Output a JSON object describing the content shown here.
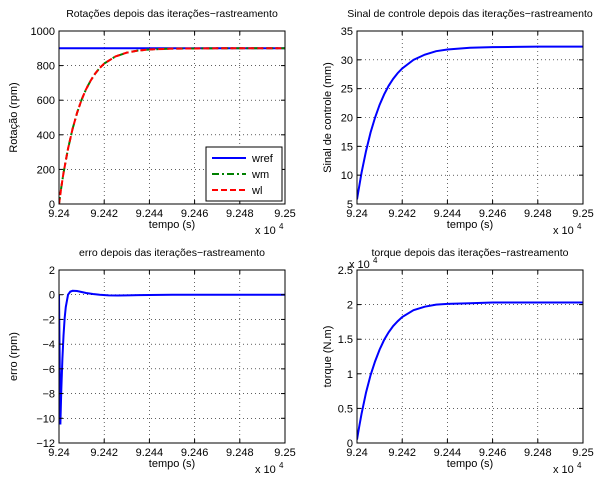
{
  "chart_data": [
    {
      "type": "line",
      "title": "Rotações depois das iterações−rastreamento",
      "xlabel": "tempo (s)",
      "ylabel": "Rotação (rpm)",
      "xlim": [
        92400,
        92500
      ],
      "ylim": [
        0,
        1000
      ],
      "xticks": [
        92400,
        92420,
        92440,
        92460,
        92480,
        92500
      ],
      "xtick_labels": [
        "9.24",
        "9.242",
        "9.244",
        "9.246",
        "9.248",
        "9.25"
      ],
      "yticks": [
        0,
        200,
        400,
        600,
        800,
        1000
      ],
      "ytick_labels": [
        "0",
        "200",
        "400",
        "600",
        "800",
        "1000"
      ],
      "x_multiplier": "x 10",
      "x_multiplier_exp": "4",
      "grid": "dotted",
      "legend_position": "bottom-right",
      "series": [
        {
          "name": "wref",
          "color": "#0000ff",
          "dash": "solid",
          "x": [
            92400,
            92500
          ],
          "y": [
            900,
            900
          ]
        },
        {
          "name": "wm",
          "color": "#008000",
          "dash": "dashdot",
          "x": [
            92400,
            92401,
            92402,
            92404,
            92406,
            92408,
            92410,
            92412,
            92414,
            92416,
            92418,
            92420,
            92425,
            92430,
            92435,
            92440,
            92450,
            92460,
            92470,
            92480,
            92490,
            92500
          ],
          "y": [
            0,
            95,
            180,
            320,
            434,
            527,
            603,
            664,
            713,
            754,
            786,
            812,
            853,
            875,
            887,
            893,
            898,
            899,
            900,
            900,
            900,
            900
          ]
        },
        {
          "name": "wl",
          "color": "#ff0000",
          "dash": "dashed",
          "x": [
            92400,
            92401,
            92402,
            92404,
            92406,
            92408,
            92410,
            92412,
            92414,
            92416,
            92418,
            92420,
            92425,
            92430,
            92435,
            92440,
            92450,
            92460,
            92470,
            92480,
            92490,
            92500
          ],
          "y": [
            0,
            95,
            180,
            320,
            434,
            527,
            603,
            664,
            713,
            754,
            786,
            812,
            853,
            875,
            887,
            893,
            898,
            899,
            900,
            900,
            900,
            900
          ]
        }
      ]
    },
    {
      "type": "line",
      "title": "Sinal de controle depois das iterações−rastreamento",
      "xlabel": "tempo (s)",
      "ylabel": "Sinal de controle (mm)",
      "xlim": [
        92400,
        92500
      ],
      "ylim": [
        5,
        35
      ],
      "xticks": [
        92400,
        92420,
        92440,
        92460,
        92480,
        92500
      ],
      "xtick_labels": [
        "9.24",
        "9.242",
        "9.244",
        "9.246",
        "9.248",
        "9.25"
      ],
      "yticks": [
        5,
        10,
        15,
        20,
        25,
        30,
        35
      ],
      "ytick_labels": [
        "5",
        "10",
        "15",
        "20",
        "25",
        "30",
        "35"
      ],
      "x_multiplier": "x 10",
      "x_multiplier_exp": "4",
      "grid": "dotted",
      "series": [
        {
          "color": "#0000ff",
          "dash": "solid",
          "x": [
            92400,
            92402,
            92404,
            92406,
            92408,
            92410,
            92412,
            92414,
            92416,
            92418,
            92420,
            92425,
            92430,
            92435,
            92440,
            92450,
            92460,
            92470,
            92480,
            92490,
            92500
          ],
          "y": [
            5.8,
            10.4,
            14.2,
            17.4,
            20.0,
            22.2,
            24.0,
            25.5,
            26.7,
            27.7,
            28.5,
            30.0,
            30.9,
            31.5,
            31.8,
            32.1,
            32.2,
            32.25,
            32.3,
            32.3,
            32.3
          ]
        }
      ]
    },
    {
      "type": "line",
      "title": "erro depois das iterações−rastreamento",
      "xlabel": "tempo (s)",
      "ylabel": "erro (rpm)",
      "xlim": [
        92400,
        92500
      ],
      "ylim": [
        -12,
        2
      ],
      "xticks": [
        92400,
        92420,
        92440,
        92460,
        92480,
        92500
      ],
      "xtick_labels": [
        "9.24",
        "9.242",
        "9.244",
        "9.246",
        "9.248",
        "9.25"
      ],
      "yticks": [
        -12,
        -10,
        -8,
        -6,
        -4,
        -2,
        0,
        2
      ],
      "ytick_labels": [
        "−12",
        "−10",
        "−8",
        "−6",
        "−4",
        "−2",
        "0",
        "2"
      ],
      "x_multiplier": "x 10",
      "x_multiplier_exp": "4",
      "grid": "dotted",
      "series": [
        {
          "color": "#0000ff",
          "dash": "solid",
          "x": [
            92400,
            92400.6,
            92401,
            92401.5,
            92402,
            92402.5,
            92403,
            92404,
            92405,
            92406,
            92408,
            92410,
            92412,
            92415,
            92418,
            92422,
            92426,
            92430,
            92435,
            92440,
            92450,
            92460,
            92480,
            92500
          ],
          "y": [
            0,
            -10.5,
            -7.8,
            -5.2,
            -3.3,
            -1.9,
            -1.0,
            0.0,
            0.25,
            0.32,
            0.3,
            0.22,
            0.14,
            0.06,
            0.0,
            -0.05,
            -0.06,
            -0.05,
            -0.03,
            -0.02,
            0,
            0,
            0,
            0
          ]
        }
      ]
    },
    {
      "type": "line",
      "title": "torque depois das iterações−rastreamento",
      "xlabel": "tempo (s)",
      "ylabel": "torque (N.m)",
      "xlim": [
        92400,
        92500
      ],
      "ylim": [
        0,
        2.5
      ],
      "xticks": [
        92400,
        92420,
        92440,
        92460,
        92480,
        92500
      ],
      "xtick_labels": [
        "9.24",
        "9.242",
        "9.244",
        "9.246",
        "9.248",
        "9.25"
      ],
      "yticks": [
        0,
        0.5,
        1,
        1.5,
        2,
        2.5
      ],
      "ytick_labels": [
        "0",
        "0.5",
        "1",
        "1.5",
        "2",
        "2.5"
      ],
      "x_multiplier": "x 10",
      "x_multiplier_exp": "4",
      "y_multiplier": "x 10",
      "y_multiplier_exp": "4",
      "grid": "dotted",
      "series": [
        {
          "color": "#0000ff",
          "dash": "solid",
          "x": [
            92400,
            92401,
            92402,
            92404,
            92406,
            92408,
            92410,
            92412,
            92414,
            92416,
            92418,
            92420,
            92425,
            92430,
            92435,
            92440,
            92450,
            92460,
            92470,
            92480,
            92490,
            92500
          ],
          "y": [
            0.05,
            0.24,
            0.42,
            0.73,
            0.98,
            1.18,
            1.35,
            1.49,
            1.6,
            1.69,
            1.76,
            1.82,
            1.92,
            1.97,
            2.0,
            2.01,
            2.02,
            2.03,
            2.03,
            2.03,
            2.03,
            2.03
          ]
        }
      ]
    }
  ]
}
